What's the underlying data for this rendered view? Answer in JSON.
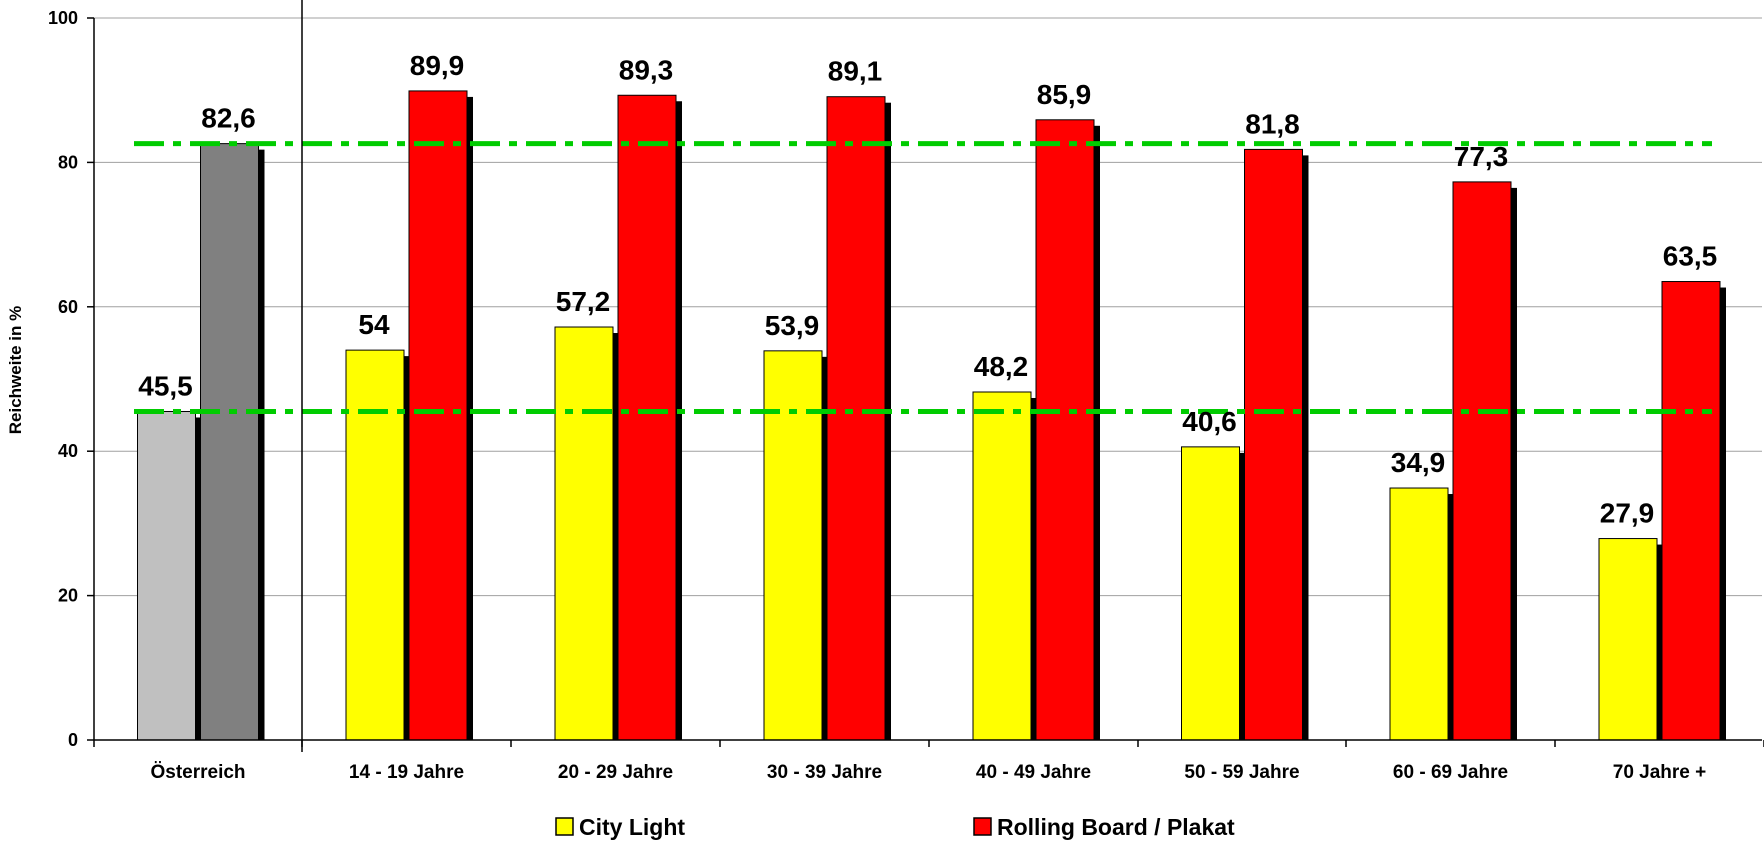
{
  "chart_data": {
    "type": "bar",
    "title": "",
    "xlabel": "",
    "ylabel": "Reichweite in %",
    "ylim": [
      0,
      100
    ],
    "yticks": [
      0,
      20,
      40,
      60,
      80,
      100
    ],
    "grid": true,
    "legend_position": "bottom",
    "categories": [
      "Österreich",
      "14 - 19 Jahre",
      "20 - 29 Jahre",
      "30 - 39 Jahre",
      "40 - 49 Jahre",
      "50 - 59 Jahre",
      "60 - 69 Jahre",
      "70 Jahre +"
    ],
    "series": [
      {
        "name": "City Light",
        "color": "#ffff00",
        "first_category_color": "#c0c0c0",
        "values": [
          45.5,
          54,
          57.2,
          53.9,
          48.2,
          40.6,
          34.9,
          27.9
        ],
        "labels": [
          "45,5",
          "54",
          "57,2",
          "53,9",
          "48,2",
          "40,6",
          "34,9",
          "27,9"
        ]
      },
      {
        "name": "Rolling Board / Plakat",
        "color": "#ff0000",
        "first_category_color": "#808080",
        "values": [
          82.6,
          89.9,
          89.3,
          89.1,
          85.9,
          81.8,
          77.3,
          63.5
        ],
        "labels": [
          "82,6",
          "89,9",
          "89,3",
          "89,1",
          "85,9",
          "81,8",
          "77,3",
          "63,5"
        ]
      }
    ],
    "reference_lines": [
      {
        "value": 82.6,
        "color": "#00cc00",
        "style": "dash-dot"
      },
      {
        "value": 45.5,
        "color": "#00cc00",
        "style": "dash-dot"
      }
    ]
  }
}
